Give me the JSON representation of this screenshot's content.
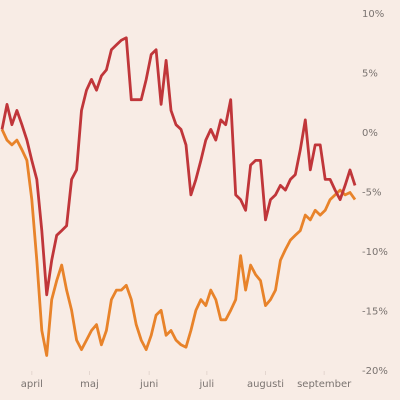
{
  "chart_data": {
    "type": "line",
    "x": [
      0,
      1,
      2,
      3,
      4,
      5,
      6,
      7,
      8,
      9,
      10,
      11,
      12,
      13,
      14,
      15,
      16,
      17,
      18,
      19,
      20,
      21,
      22,
      23,
      24,
      25,
      26,
      27,
      28,
      29,
      30,
      31,
      32,
      33,
      34,
      35,
      36,
      37,
      38,
      39,
      40,
      41,
      42,
      43,
      44,
      45,
      46,
      47,
      48,
      49,
      50,
      51,
      52,
      53,
      54,
      55,
      56,
      57,
      58,
      59,
      60,
      61,
      62,
      63,
      64,
      65,
      66,
      67,
      68,
      69,
      70,
      71
    ],
    "xlim": [
      0,
      71
    ],
    "xticks": [
      {
        "value": 6,
        "label": "april"
      },
      {
        "value": 17.6,
        "label": "maj"
      },
      {
        "value": 29.6,
        "label": "juni"
      },
      {
        "value": 41.2,
        "label": "juli"
      },
      {
        "value": 53,
        "label": "augusti"
      },
      {
        "value": 64.8,
        "label": "september"
      }
    ],
    "ylim": [
      -20,
      10
    ],
    "yticks": [
      {
        "value": 10,
        "label": "10%"
      },
      {
        "value": 5,
        "label": "5%"
      },
      {
        "value": 0,
        "label": "0%"
      },
      {
        "value": -5,
        "label": "-5%"
      },
      {
        "value": -10,
        "label": "-10%"
      },
      {
        "value": -15,
        "label": "-15%"
      },
      {
        "value": -20,
        "label": "-20%"
      }
    ],
    "grid": false,
    "series": [
      {
        "color": "#c0363a",
        "values": [
          0.3,
          2.4,
          0.7,
          1.9,
          0.7,
          -0.6,
          -2.3,
          -3.9,
          -8.2,
          -13.6,
          -10.7,
          -8.6,
          -8.2,
          -7.8,
          -3.9,
          -3.1,
          1.9,
          3.6,
          4.5,
          3.6,
          4.8,
          5.3,
          7.0,
          7.4,
          7.8,
          8.0,
          2.8,
          2.8,
          2.8,
          4.5,
          6.6,
          7.0,
          2.4,
          6.1,
          1.9,
          0.7,
          0.3,
          -1.0,
          -5.2,
          -3.9,
          -2.3,
          -0.6,
          0.3,
          -0.6,
          1.1,
          0.7,
          2.8,
          -5.2,
          -5.6,
          -6.5,
          -2.7,
          -2.3,
          -2.3,
          -7.3,
          -5.6,
          -5.2,
          -4.4,
          -4.8,
          -3.9,
          -3.5,
          -1.4,
          1.1,
          -3.1,
          -1.0,
          -1.0,
          -3.9,
          -3.9,
          -4.8,
          -5.6,
          -4.4,
          -3.1,
          -4.4
        ]
      },
      {
        "color": "#e8832a",
        "values": [
          0.3,
          -0.6,
          -1.0,
          -0.6,
          -1.4,
          -2.3,
          -5.6,
          -10.7,
          -16.6,
          -18.7,
          -14.0,
          -12.4,
          -11.1,
          -13.2,
          -14.9,
          -17.4,
          -18.2,
          -17.4,
          -16.6,
          -16.1,
          -17.8,
          -16.6,
          -14.0,
          -13.2,
          -13.2,
          -12.8,
          -14.0,
          -16.1,
          -17.4,
          -18.2,
          -17.0,
          -15.3,
          -14.9,
          -17.0,
          -16.6,
          -17.4,
          -17.8,
          -18.0,
          -16.6,
          -14.9,
          -14.0,
          -14.5,
          -13.2,
          -14.0,
          -15.7,
          -15.7,
          -14.9,
          -14.0,
          -10.3,
          -13.2,
          -11.1,
          -11.9,
          -12.4,
          -14.5,
          -14.0,
          -13.2,
          -10.7,
          -9.8,
          -9.0,
          -8.6,
          -8.2,
          -6.9,
          -7.3,
          -6.5,
          -6.9,
          -6.5,
          -5.6,
          -5.2,
          -4.8,
          -5.2,
          -5.0,
          -5.6
        ]
      }
    ]
  }
}
